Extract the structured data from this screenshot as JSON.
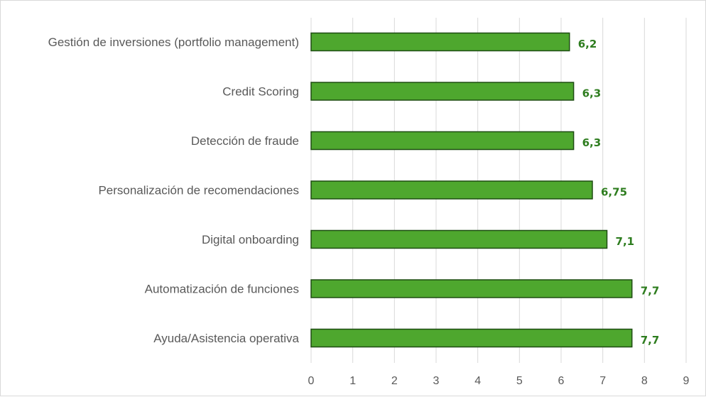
{
  "chart_data": {
    "type": "bar",
    "orientation": "horizontal",
    "title": "",
    "xlabel": "",
    "ylabel": "",
    "categories": [
      "Gestión de inversiones (portfolio management)",
      "Credit Scoring",
      "Detección de fraude",
      "Personalización de recomendaciones",
      "Digital onboarding",
      "Automatización de funciones",
      "Ayuda/Asistencia operativa"
    ],
    "values": [
      6.2,
      6.3,
      6.3,
      6.75,
      7.1,
      7.7,
      7.7
    ],
    "data_labels": [
      "6,2",
      "6,3",
      "6,3",
      "6,75",
      "7,1",
      "7,7",
      "7,7"
    ],
    "xlim": [
      0,
      9
    ],
    "xticks": [
      "0",
      "1",
      "2",
      "3",
      "4",
      "5",
      "6",
      "7",
      "8",
      "9"
    ],
    "grid": "vertical",
    "legend": "none",
    "bar_color": "#4ea72e",
    "bar_border_color": "#1e4d12",
    "label_color": "#2e7d1f"
  }
}
